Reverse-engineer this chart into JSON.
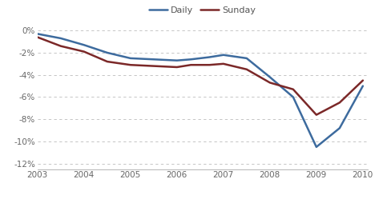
{
  "daily_x": [
    2003,
    2003.5,
    2004,
    2004.5,
    2005,
    2005.5,
    2006,
    2006.3,
    2006.7,
    2007,
    2007.5,
    2008,
    2008.5,
    2009,
    2009.5,
    2010
  ],
  "daily_y": [
    -0.003,
    -0.007,
    -0.013,
    -0.02,
    -0.025,
    -0.026,
    -0.027,
    -0.026,
    -0.024,
    -0.022,
    -0.025,
    -0.042,
    -0.06,
    -0.105,
    -0.088,
    -0.05
  ],
  "sunday_x": [
    2003,
    2003.5,
    2004,
    2004.5,
    2005,
    2005.5,
    2006,
    2006.3,
    2006.7,
    2007,
    2007.5,
    2008,
    2008.5,
    2009,
    2009.5,
    2010
  ],
  "sunday_y": [
    -0.006,
    -0.014,
    -0.019,
    -0.028,
    -0.031,
    -0.032,
    -0.033,
    -0.031,
    -0.031,
    -0.03,
    -0.035,
    -0.047,
    -0.053,
    -0.076,
    -0.065,
    -0.045
  ],
  "daily_color": "#3d6b9e",
  "sunday_color": "#7b2828",
  "xlim": [
    2003,
    2010.1
  ],
  "ylim": [
    -0.125,
    0.006
  ],
  "yticks": [
    0.0,
    -0.02,
    -0.04,
    -0.06,
    -0.08,
    -0.1,
    -0.12
  ],
  "xticks": [
    2003,
    2004,
    2005,
    2006,
    2007,
    2008,
    2009,
    2010
  ],
  "background_color": "#ffffff",
  "grid_color": "#bbbbbb",
  "legend_labels": [
    "Daily",
    "Sunday"
  ],
  "line_width": 1.8
}
